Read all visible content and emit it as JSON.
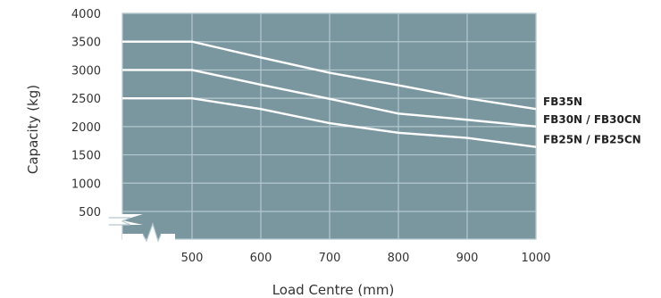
{
  "chart_data": {
    "type": "line",
    "xlabel": "Load Centre (mm)",
    "ylabel": "Capacity (kg)",
    "x_ticks": [
      500,
      600,
      700,
      800,
      900,
      1000
    ],
    "y_ticks": [
      500,
      1000,
      1500,
      2000,
      2500,
      3000,
      3500,
      4000
    ],
    "xlim": [
      400,
      1000
    ],
    "ylim": [
      250,
      4000
    ],
    "axis_break": true,
    "grid": true,
    "colors": {
      "plot_bg": "#7a97a0",
      "grid": "#b4c8ce",
      "line": "#ffffff"
    },
    "series": [
      {
        "name": "FB35N",
        "points": [
          [
            400,
            3500
          ],
          [
            500,
            3500
          ],
          [
            600,
            3220
          ],
          [
            700,
            2950
          ],
          [
            800,
            2730
          ],
          [
            900,
            2500
          ],
          [
            1000,
            2310
          ]
        ]
      },
      {
        "name": "FB30N / FB30CN",
        "points": [
          [
            400,
            3000
          ],
          [
            500,
            3000
          ],
          [
            600,
            2740
          ],
          [
            700,
            2490
          ],
          [
            800,
            2230
          ],
          [
            900,
            2120
          ],
          [
            1000,
            2000
          ]
        ]
      },
      {
        "name": "FB25N / FB25CN",
        "points": [
          [
            400,
            2500
          ],
          [
            500,
            2500
          ],
          [
            600,
            2310
          ],
          [
            700,
            2060
          ],
          [
            800,
            1890
          ],
          [
            900,
            1800
          ],
          [
            1000,
            1640
          ]
        ]
      }
    ]
  }
}
